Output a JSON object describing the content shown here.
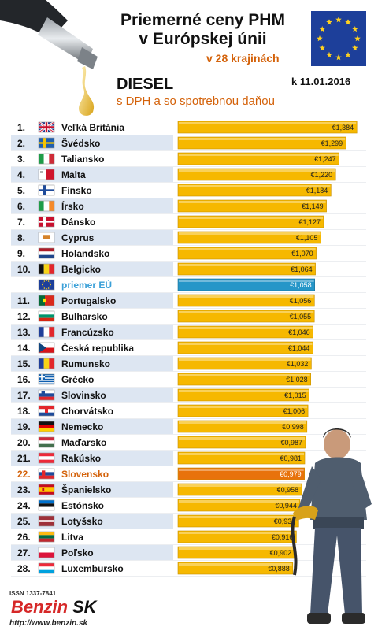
{
  "header": {
    "title_line1": "Priemerné ceny PHM",
    "title_line2": "v Európskej únii",
    "subtitle": "v 28 krajinách",
    "fuel": "DIESEL",
    "fuel_note": "s DPH a so spotrebnou daňou",
    "date": "k 11.01.2016"
  },
  "footer": {
    "issn": "ISSN 1337-7841",
    "logo_text": "BenzinSK",
    "url": "http://www.benzin.sk"
  },
  "colors": {
    "bar": "#f6b800",
    "bar_highlight": "#e8720c",
    "bar_eu": "#2596c8",
    "row_shade": "#dde6f2",
    "text_highlight": "#d4620a",
    "text_eu": "#3aa0d8"
  },
  "chart_data": {
    "type": "bar",
    "orientation": "horizontal",
    "xlim": [
      0,
      1.45
    ],
    "grid": false,
    "rows": [
      {
        "rank": "1.",
        "country": "Veľká Británia",
        "value": 1.384,
        "label": "€1,384",
        "flag": "uk-flag"
      },
      {
        "rank": "2.",
        "country": "Švédsko",
        "value": 1.299,
        "label": "€1,299",
        "flag": "sweden-flag"
      },
      {
        "rank": "3.",
        "country": "Taliansko",
        "value": 1.247,
        "label": "€1,247",
        "flag": "italy-flag"
      },
      {
        "rank": "4.",
        "country": "Malta",
        "value": 1.22,
        "label": "€1,220",
        "flag": "malta-flag"
      },
      {
        "rank": "5.",
        "country": "Fínsko",
        "value": 1.184,
        "label": "€1,184",
        "flag": "finland-flag"
      },
      {
        "rank": "6.",
        "country": "Írsko",
        "value": 1.149,
        "label": "€1,149",
        "flag": "ireland-flag"
      },
      {
        "rank": "7.",
        "country": "Dánsko",
        "value": 1.127,
        "label": "€1,127",
        "flag": "denmark-flag"
      },
      {
        "rank": "8.",
        "country": "Cyprus",
        "value": 1.105,
        "label": "€1,105",
        "flag": "cyprus-flag"
      },
      {
        "rank": "9.",
        "country": "Holandsko",
        "value": 1.07,
        "label": "€1,070",
        "flag": "netherlands-flag"
      },
      {
        "rank": "10.",
        "country": "Belgicko",
        "value": 1.064,
        "label": "€1,064",
        "flag": "belgium-flag"
      },
      {
        "rank": "",
        "country": "priemer EÚ",
        "value": 1.058,
        "label": "€1,058",
        "flag": "eu-flag",
        "kind": "eu"
      },
      {
        "rank": "11.",
        "country": "Portugalsko",
        "value": 1.056,
        "label": "€1,056",
        "flag": "portugal-flag"
      },
      {
        "rank": "12.",
        "country": "Bulharsko",
        "value": 1.055,
        "label": "€1,055",
        "flag": "bulgaria-flag"
      },
      {
        "rank": "13.",
        "country": "Francúzsko",
        "value": 1.046,
        "label": "€1,046",
        "flag": "france-flag"
      },
      {
        "rank": "14.",
        "country": "Česká republika",
        "value": 1.044,
        "label": "€1,044",
        "flag": "czech-flag"
      },
      {
        "rank": "15.",
        "country": "Rumunsko",
        "value": 1.032,
        "label": "€1,032",
        "flag": "romania-flag"
      },
      {
        "rank": "16.",
        "country": "Grécko",
        "value": 1.028,
        "label": "€1,028",
        "flag": "greece-flag"
      },
      {
        "rank": "17.",
        "country": "Slovinsko",
        "value": 1.015,
        "label": "€1,015",
        "flag": "slovenia-flag"
      },
      {
        "rank": "18.",
        "country": "Chorvátsko",
        "value": 1.006,
        "label": "€1,006",
        "flag": "croatia-flag"
      },
      {
        "rank": "19.",
        "country": "Nemecko",
        "value": 0.998,
        "label": "€0,998",
        "flag": "germany-flag"
      },
      {
        "rank": "20.",
        "country": "Maďarsko",
        "value": 0.987,
        "label": "€0,987",
        "flag": "hungary-flag"
      },
      {
        "rank": "21.",
        "country": "Rakúsko",
        "value": 0.981,
        "label": "€0,981",
        "flag": "austria-flag"
      },
      {
        "rank": "22.",
        "country": "Slovensko",
        "value": 0.979,
        "label": "€0,979",
        "flag": "slovakia-flag",
        "kind": "highlight"
      },
      {
        "rank": "23.",
        "country": "Španielsko",
        "value": 0.958,
        "label": "€0,958",
        "flag": "spain-flag"
      },
      {
        "rank": "24.",
        "country": "Estónsko",
        "value": 0.944,
        "label": "€0,944",
        "flag": "estonia-flag"
      },
      {
        "rank": "25.",
        "country": "Lotyšsko",
        "value": 0.934,
        "label": "€0,934",
        "flag": "latvia-flag"
      },
      {
        "rank": "26.",
        "country": "Litva",
        "value": 0.916,
        "label": "€0,916",
        "flag": "lithuania-flag"
      },
      {
        "rank": "27.",
        "country": "Poľsko",
        "value": 0.902,
        "label": "€0,902",
        "flag": "poland-flag"
      },
      {
        "rank": "28.",
        "country": "Luxembursko",
        "value": 0.888,
        "label": "€0,888",
        "flag": "luxembourg-flag"
      }
    ]
  }
}
